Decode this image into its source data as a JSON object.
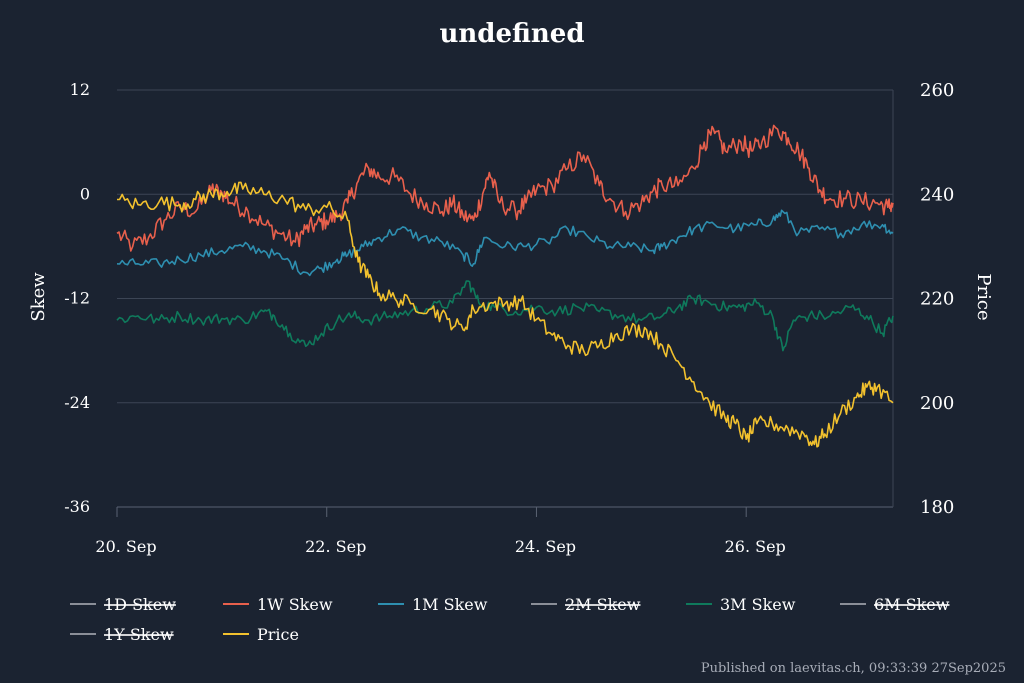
{
  "chart_data": {
    "type": "line",
    "title": "undefined",
    "ylabel_left": "Skew",
    "ylabel_right": "Price",
    "left_axis": {
      "min": -36,
      "max": 12,
      "ticks": [
        12,
        0,
        -12,
        -24,
        -36
      ],
      "tick_labels": [
        "12",
        "0",
        "-12",
        "-24",
        "-36"
      ]
    },
    "right_axis": {
      "min": 180,
      "max": 260,
      "ticks": [
        260,
        240,
        220,
        200,
        180
      ],
      "tick_labels": [
        "260",
        "240",
        "220",
        "200",
        "180"
      ]
    },
    "x_axis": {
      "min_day": 20,
      "max_day": 27.4,
      "ticks": [
        20,
        22,
        24,
        26
      ],
      "tick_labels": [
        "20. Sep",
        "22. Sep",
        "24. Sep",
        "26. Sep"
      ]
    },
    "series": [
      {
        "name": "1W Skew",
        "axis": "left",
        "color": "#e8604c",
        "points": [
          [
            20.0,
            -4.5
          ],
          [
            20.15,
            -6
          ],
          [
            20.3,
            -5
          ],
          [
            20.45,
            -3
          ],
          [
            20.6,
            -1.5
          ],
          [
            20.75,
            -2
          ],
          [
            20.9,
            0.5
          ],
          [
            21.0,
            0.2
          ],
          [
            21.1,
            -1
          ],
          [
            21.25,
            -2
          ],
          [
            21.4,
            -3.5
          ],
          [
            21.55,
            -4.5
          ],
          [
            21.7,
            -5.5
          ],
          [
            21.8,
            -4
          ],
          [
            21.9,
            -3.5
          ],
          [
            22.0,
            -3
          ],
          [
            22.1,
            -2.5
          ],
          [
            22.2,
            -1
          ],
          [
            22.3,
            1.5
          ],
          [
            22.4,
            3
          ],
          [
            22.5,
            2
          ],
          [
            22.65,
            2
          ],
          [
            22.8,
            0
          ],
          [
            22.95,
            -1
          ],
          [
            23.1,
            -2
          ],
          [
            23.2,
            -1
          ],
          [
            23.3,
            -2.5
          ],
          [
            23.4,
            -3
          ],
          [
            23.5,
            0.5
          ],
          [
            23.55,
            2.5
          ],
          [
            23.65,
            -1
          ],
          [
            23.8,
            -2
          ],
          [
            23.9,
            -1
          ],
          [
            24.0,
            0.5
          ],
          [
            24.15,
            1
          ],
          [
            24.3,
            3
          ],
          [
            24.45,
            4.5
          ],
          [
            24.6,
            1
          ],
          [
            24.7,
            -0.5
          ],
          [
            24.85,
            -2
          ],
          [
            25.0,
            -1
          ],
          [
            25.1,
            0.2
          ],
          [
            25.2,
            1
          ],
          [
            25.35,
            1
          ],
          [
            25.5,
            3
          ],
          [
            25.6,
            6
          ],
          [
            25.7,
            7
          ],
          [
            25.8,
            5
          ],
          [
            25.95,
            6
          ],
          [
            26.05,
            5
          ],
          [
            26.15,
            6
          ],
          [
            26.3,
            7.5
          ],
          [
            26.4,
            6.5
          ],
          [
            26.5,
            5
          ],
          [
            26.6,
            3
          ],
          [
            26.7,
            0.5
          ],
          [
            26.8,
            -0.5
          ],
          [
            26.95,
            -0.5
          ],
          [
            27.1,
            -0.8
          ],
          [
            27.25,
            -1
          ],
          [
            27.35,
            -1.5
          ],
          [
            27.4,
            -1
          ]
        ]
      },
      {
        "name": "1M Skew",
        "axis": "left",
        "color": "#2e8fb0",
        "points": [
          [
            20.0,
            -8
          ],
          [
            20.2,
            -8
          ],
          [
            20.4,
            -8
          ],
          [
            20.6,
            -7.5
          ],
          [
            20.8,
            -7
          ],
          [
            21.0,
            -6.5
          ],
          [
            21.2,
            -6
          ],
          [
            21.4,
            -6.5
          ],
          [
            21.6,
            -7.5
          ],
          [
            21.8,
            -9
          ],
          [
            21.95,
            -8.5
          ],
          [
            22.1,
            -7.5
          ],
          [
            22.2,
            -7
          ],
          [
            22.35,
            -6
          ],
          [
            22.5,
            -5
          ],
          [
            22.7,
            -4
          ],
          [
            22.9,
            -5
          ],
          [
            23.1,
            -5.5
          ],
          [
            23.3,
            -7
          ],
          [
            23.4,
            -8
          ],
          [
            23.5,
            -5
          ],
          [
            23.7,
            -6
          ],
          [
            23.9,
            -6
          ],
          [
            24.1,
            -5.5
          ],
          [
            24.3,
            -4
          ],
          [
            24.5,
            -5
          ],
          [
            24.7,
            -6
          ],
          [
            24.9,
            -6
          ],
          [
            25.1,
            -6.5
          ],
          [
            25.2,
            -6
          ],
          [
            25.35,
            -5
          ],
          [
            25.5,
            -4
          ],
          [
            25.7,
            -3.5
          ],
          [
            25.9,
            -4
          ],
          [
            26.1,
            -3.5
          ],
          [
            26.25,
            -3
          ],
          [
            26.35,
            -2
          ],
          [
            26.5,
            -4.5
          ],
          [
            26.7,
            -4
          ],
          [
            26.9,
            -4.5
          ],
          [
            27.1,
            -3.5
          ],
          [
            27.3,
            -3.5
          ],
          [
            27.4,
            -4.5
          ]
        ]
      },
      {
        "name": "3M Skew",
        "axis": "left",
        "color": "#0f7a5c",
        "points": [
          [
            20.0,
            -14.5
          ],
          [
            20.2,
            -14
          ],
          [
            20.4,
            -14.5
          ],
          [
            20.6,
            -14
          ],
          [
            20.8,
            -14.5
          ],
          [
            21.0,
            -14.3
          ],
          [
            21.2,
            -14.5
          ],
          [
            21.4,
            -13.5
          ],
          [
            21.5,
            -14
          ],
          [
            21.65,
            -16
          ],
          [
            21.8,
            -17.5
          ],
          [
            21.95,
            -16
          ],
          [
            22.1,
            -14.5
          ],
          [
            22.25,
            -14
          ],
          [
            22.4,
            -14.5
          ],
          [
            22.6,
            -14
          ],
          [
            22.8,
            -13.5
          ],
          [
            23.0,
            -13
          ],
          [
            23.2,
            -12.5
          ],
          [
            23.35,
            -10
          ],
          [
            23.45,
            -12.5
          ],
          [
            23.6,
            -13
          ],
          [
            23.8,
            -13.5
          ],
          [
            24.0,
            -13
          ],
          [
            24.2,
            -13.5
          ],
          [
            24.4,
            -13
          ],
          [
            24.6,
            -13.5
          ],
          [
            24.8,
            -14
          ],
          [
            25.0,
            -14.5
          ],
          [
            25.2,
            -14
          ],
          [
            25.35,
            -13
          ],
          [
            25.5,
            -12
          ],
          [
            25.65,
            -12.5
          ],
          [
            25.8,
            -13
          ],
          [
            25.95,
            -13
          ],
          [
            26.1,
            -12.5
          ],
          [
            26.25,
            -14
          ],
          [
            26.35,
            -18
          ],
          [
            26.45,
            -14.5
          ],
          [
            26.6,
            -14
          ],
          [
            26.8,
            -14
          ],
          [
            27.0,
            -13
          ],
          [
            27.15,
            -14
          ],
          [
            27.3,
            -16
          ],
          [
            27.4,
            -14
          ]
        ]
      },
      {
        "name": "Price",
        "axis": "right",
        "color": "#f2c12e",
        "points": [
          [
            20.0,
            239
          ],
          [
            20.2,
            238
          ],
          [
            20.4,
            238.5
          ],
          [
            20.6,
            238
          ],
          [
            20.75,
            239
          ],
          [
            20.9,
            240
          ],
          [
            21.05,
            240.5
          ],
          [
            21.2,
            241
          ],
          [
            21.4,
            240
          ],
          [
            21.6,
            239
          ],
          [
            21.8,
            237
          ],
          [
            22.0,
            237.5
          ],
          [
            22.2,
            235
          ],
          [
            22.3,
            227
          ],
          [
            22.4,
            224
          ],
          [
            22.5,
            221
          ],
          [
            22.65,
            220
          ],
          [
            22.8,
            219
          ],
          [
            23.0,
            218
          ],
          [
            23.15,
            216
          ],
          [
            23.3,
            214
          ],
          [
            23.4,
            218
          ],
          [
            23.55,
            219
          ],
          [
            23.7,
            219
          ],
          [
            23.85,
            219.5
          ],
          [
            24.0,
            216
          ],
          [
            24.15,
            213
          ],
          [
            24.3,
            211
          ],
          [
            24.45,
            210
          ],
          [
            24.6,
            211
          ],
          [
            24.75,
            213
          ],
          [
            24.9,
            214
          ],
          [
            25.05,
            214
          ],
          [
            25.2,
            211
          ],
          [
            25.35,
            208
          ],
          [
            25.5,
            204
          ],
          [
            25.65,
            200
          ],
          [
            25.8,
            197
          ],
          [
            25.9,
            196
          ],
          [
            26.0,
            193
          ],
          [
            26.1,
            196
          ],
          [
            26.25,
            196
          ],
          [
            26.4,
            195
          ],
          [
            26.55,
            194
          ],
          [
            26.65,
            192
          ],
          [
            26.75,
            194
          ],
          [
            26.9,
            198
          ],
          [
            27.05,
            201
          ],
          [
            27.15,
            203
          ],
          [
            27.25,
            203
          ],
          [
            27.4,
            200
          ]
        ]
      },
      {
        "name": "1D Skew",
        "axis": "left",
        "color": "#8b8f98",
        "hidden": true,
        "points": []
      },
      {
        "name": "2M Skew",
        "axis": "left",
        "color": "#8b8f98",
        "hidden": true,
        "points": []
      },
      {
        "name": "6M Skew",
        "axis": "left",
        "color": "#8b8f98",
        "hidden": true,
        "points": []
      },
      {
        "name": "1Y Skew",
        "axis": "left",
        "color": "#8b8f98",
        "hidden": true,
        "points": []
      }
    ],
    "legend": [
      {
        "label": "1D Skew",
        "color": "#8b8f98",
        "hidden": true
      },
      {
        "label": "1W Skew",
        "color": "#e8604c",
        "hidden": false
      },
      {
        "label": "1M Skew",
        "color": "#2e8fb0",
        "hidden": false
      },
      {
        "label": "2M Skew",
        "color": "#8b8f98",
        "hidden": true
      },
      {
        "label": "3M Skew",
        "color": "#0f7a5c",
        "hidden": false
      },
      {
        "label": "6M Skew",
        "color": "#8b8f98",
        "hidden": true
      },
      {
        "label": "1Y Skew",
        "color": "#8b8f98",
        "hidden": true
      },
      {
        "label": "Price",
        "color": "#f2c12e",
        "hidden": false
      }
    ],
    "legend_position": "bottom"
  },
  "credit": "Published on laevitas.ch, 09:33:39 27Sep2025"
}
